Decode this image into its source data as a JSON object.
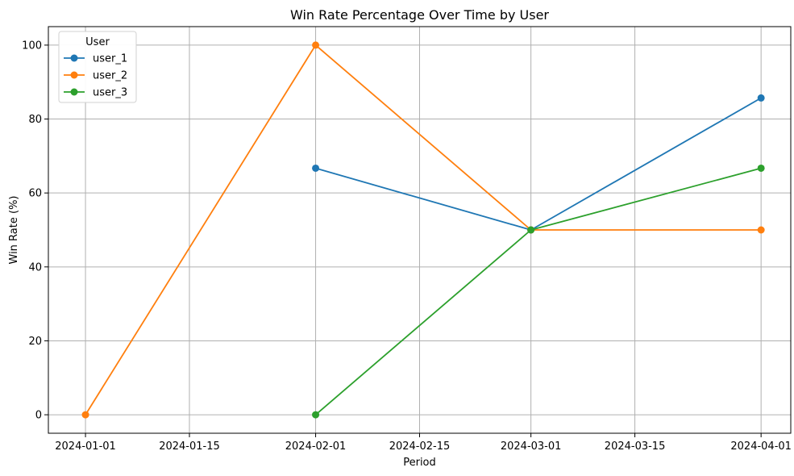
{
  "chart_data": {
    "type": "line",
    "title": "Win Rate Percentage Over Time by User",
    "xlabel": "Period",
    "ylabel": "Win Rate (%)",
    "x_axis_type": "date",
    "xlim": [
      "2023-12-27",
      "2024-04-05"
    ],
    "ylim": [
      -5,
      105
    ],
    "x_ticks": [
      "2024-01-01",
      "2024-01-15",
      "2024-02-01",
      "2024-02-15",
      "2024-03-01",
      "2024-03-15",
      "2024-04-01"
    ],
    "y_ticks": [
      0,
      20,
      40,
      60,
      80,
      100
    ],
    "grid": true,
    "legend": {
      "title": "User",
      "placement": "top-left"
    },
    "series": [
      {
        "name": "user_1",
        "color": "#1f77b4",
        "marker": "circle",
        "x": [
          "2024-02-01",
          "2024-03-01",
          "2024-04-01"
        ],
        "y": [
          66.7,
          50,
          85.7
        ]
      },
      {
        "name": "user_2",
        "color": "#ff7f0e",
        "marker": "circle",
        "x": [
          "2024-01-01",
          "2024-02-01",
          "2024-03-01",
          "2024-04-01"
        ],
        "y": [
          0,
          100,
          50,
          50
        ]
      },
      {
        "name": "user_3",
        "color": "#2ca02c",
        "marker": "circle",
        "x": [
          "2024-02-01",
          "2024-03-01",
          "2024-04-01"
        ],
        "y": [
          0,
          50,
          66.7
        ]
      }
    ]
  }
}
